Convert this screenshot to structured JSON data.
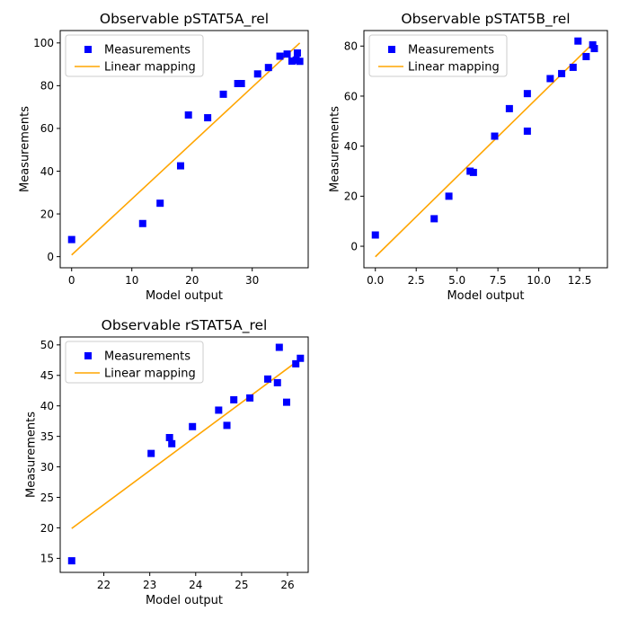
{
  "chart_data": [
    {
      "type": "scatter",
      "title": "Observable pSTAT5A_rel",
      "xlabel": "Model output",
      "ylabel": "Measurements",
      "xlim": [
        -1.9,
        39.3
      ],
      "ylim": [
        -5.2,
        105.8
      ],
      "xticks": [
        0,
        10,
        20,
        30
      ],
      "yticks": [
        0,
        20,
        40,
        60,
        80,
        100
      ],
      "legend": {
        "placement": "top-left",
        "entries": [
          "Measurements",
          "Linear mapping"
        ]
      },
      "colors": {
        "measurements": "#0000ff",
        "line": "#ffa500"
      },
      "series": [
        {
          "name": "Measurements",
          "kind": "points",
          "points": [
            [
              0,
              8
            ],
            [
              11.8,
              15.5
            ],
            [
              14.7,
              25
            ],
            [
              18.1,
              42.5
            ],
            [
              19.4,
              66.3
            ],
            [
              22.6,
              65
            ],
            [
              25.2,
              76
            ],
            [
              27.6,
              81
            ],
            [
              28.2,
              81
            ],
            [
              30.9,
              85.5
            ],
            [
              32.7,
              88.5
            ],
            [
              34.6,
              93.8
            ],
            [
              35.8,
              94.8
            ],
            [
              36.6,
              91.5
            ],
            [
              37.3,
              92
            ],
            [
              37.5,
              95.3
            ],
            [
              37.9,
              91.4
            ]
          ]
        },
        {
          "name": "Linear mapping",
          "kind": "line",
          "points": [
            [
              0,
              0.8
            ],
            [
              37.9,
              100
            ]
          ]
        }
      ]
    },
    {
      "type": "scatter",
      "title": "Observable pSTAT5B_rel",
      "xlabel": "Model output",
      "ylabel": "Measurements",
      "xlim": [
        -0.7,
        14.2
      ],
      "ylim": [
        -8.6,
        86.2
      ],
      "xticks": [
        0.0,
        2.5,
        5.0,
        7.5,
        10.0,
        12.5
      ],
      "xtick_labels": [
        "0.0",
        "2.5",
        "5.0",
        "7.5",
        "10.0",
        "12.5"
      ],
      "yticks": [
        0,
        20,
        40,
        60,
        80
      ],
      "legend": {
        "placement": "top-left",
        "entries": [
          "Measurements",
          "Linear mapping"
        ]
      },
      "colors": {
        "measurements": "#0000ff",
        "line": "#ffa500"
      },
      "series": [
        {
          "name": "Measurements",
          "kind": "points",
          "points": [
            [
              0,
              4.5
            ],
            [
              3.6,
              11
            ],
            [
              4.5,
              20
            ],
            [
              5.8,
              30
            ],
            [
              6,
              29.5
            ],
            [
              7.3,
              44
            ],
            [
              8.2,
              55
            ],
            [
              9.3,
              61
            ],
            [
              9.3,
              46
            ],
            [
              10.7,
              67
            ],
            [
              11.4,
              69
            ],
            [
              12.1,
              71.5
            ],
            [
              12.4,
              82
            ],
            [
              12.9,
              75.8
            ],
            [
              13.3,
              80.5
            ],
            [
              13.4,
              79
            ]
          ]
        },
        {
          "name": "Linear mapping",
          "kind": "line",
          "points": [
            [
              0,
              -4.2
            ],
            [
              13.4,
              81.6
            ]
          ]
        }
      ]
    },
    {
      "type": "scatter",
      "title": "Observable rSTAT5A_rel",
      "xlabel": "Model output",
      "ylabel": "Measurements",
      "xlim": [
        21.05,
        26.45
      ],
      "ylim": [
        12.7,
        51.3
      ],
      "xticks": [
        22,
        23,
        24,
        25,
        26
      ],
      "yticks": [
        15,
        20,
        25,
        30,
        35,
        40,
        45,
        50
      ],
      "legend": {
        "placement": "top-left",
        "entries": [
          "Measurements",
          "Linear mapping"
        ]
      },
      "colors": {
        "measurements": "#0000ff",
        "line": "#ffa500"
      },
      "series": [
        {
          "name": "Measurements",
          "kind": "points",
          "points": [
            [
              21.3,
              14.6
            ],
            [
              23.03,
              32.2
            ],
            [
              23.43,
              34.8
            ],
            [
              23.48,
              33.8
            ],
            [
              23.93,
              36.6
            ],
            [
              24.5,
              39.3
            ],
            [
              24.68,
              36.8
            ],
            [
              24.83,
              41
            ],
            [
              25.18,
              41.3
            ],
            [
              25.57,
              44.4
            ],
            [
              25.78,
              43.8
            ],
            [
              25.82,
              49.6
            ],
            [
              25.98,
              40.6
            ],
            [
              26.18,
              46.9
            ],
            [
              26.28,
              47.8
            ]
          ]
        },
        {
          "name": "Linear mapping",
          "kind": "line",
          "points": [
            [
              21.3,
              19.9
            ],
            [
              26.28,
              47.7
            ]
          ]
        }
      ]
    }
  ]
}
